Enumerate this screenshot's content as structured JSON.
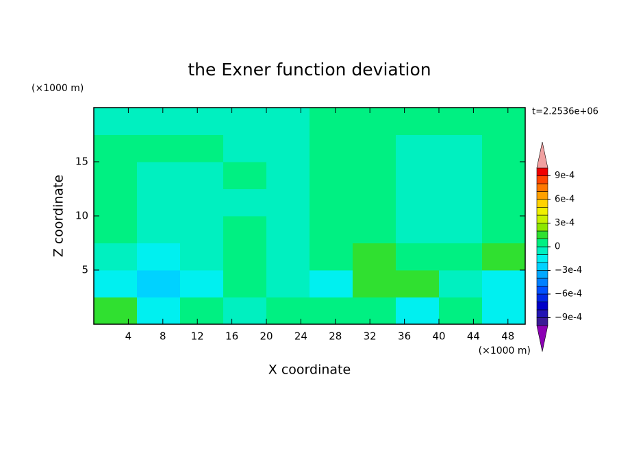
{
  "chart_data": {
    "type": "contour",
    "title": "the Exner function deviation",
    "xlabel": "X coordinate",
    "ylabel": "Z coordinate",
    "xunit": "(×1000 m)",
    "yunit": "(×1000 m)",
    "time_label": "t=2.2536e+06",
    "xlim": [
      0,
      50
    ],
    "ylim": [
      0,
      20
    ],
    "xticks": [
      4,
      8,
      12,
      16,
      20,
      24,
      28,
      32,
      36,
      40,
      44,
      48
    ],
    "yticks": [
      5,
      10,
      15
    ],
    "x_edges": [
      0,
      5,
      10,
      15,
      20,
      25,
      30,
      35,
      40,
      45,
      50
    ],
    "z_edges": [
      0,
      2.5,
      5,
      7.5,
      10,
      12.5,
      15,
      17.5,
      20
    ],
    "values": [
      [
        0.00015,
        -0.00015,
        5e-05,
        -5e-05,
        5e-05,
        5e-05,
        5e-05,
        -0.00015,
        5e-05,
        -0.00015
      ],
      [
        -0.00015,
        -0.00025,
        -0.00015,
        5e-05,
        -5e-05,
        -0.00015,
        0.00015,
        0.00015,
        -5e-05,
        -0.00015
      ],
      [
        -5e-05,
        -0.00015,
        -5e-05,
        5e-05,
        -5e-05,
        5e-05,
        0.00015,
        5e-05,
        5e-05,
        0.00015
      ],
      [
        5e-05,
        -5e-05,
        -5e-05,
        5e-05,
        -5e-05,
        5e-05,
        5e-05,
        -5e-05,
        -5e-05,
        5e-05
      ],
      [
        5e-05,
        -5e-05,
        -5e-05,
        -5e-05,
        -5e-05,
        5e-05,
        5e-05,
        -5e-05,
        -5e-05,
        5e-05
      ],
      [
        5e-05,
        -5e-05,
        -5e-05,
        5e-05,
        -5e-05,
        5e-05,
        5e-05,
        -5e-05,
        -5e-05,
        5e-05
      ],
      [
        5e-05,
        5e-05,
        5e-05,
        -5e-05,
        -5e-05,
        5e-05,
        5e-05,
        -5e-05,
        -5e-05,
        5e-05
      ],
      [
        -5e-05,
        -5e-05,
        -5e-05,
        -5e-05,
        -5e-05,
        5e-05,
        5e-05,
        5e-05,
        5e-05,
        5e-05
      ]
    ],
    "levels": [
      -0.001,
      -0.0009,
      -0.0008,
      -0.0007,
      -0.0006,
      -0.0005,
      -0.0004,
      -0.0003,
      -0.0002,
      -0.0001,
      0,
      0.0001,
      0.0002,
      0.0003,
      0.0004,
      0.0005,
      0.0006,
      0.0007,
      0.0008,
      0.0009,
      0.001
    ],
    "colors": [
      "#3a1a96",
      "#2314b4",
      "#0000c8",
      "#0028e6",
      "#0050ff",
      "#0080ff",
      "#00a8ff",
      "#00d2ff",
      "#00f0f0",
      "#00f0c0",
      "#00f082",
      "#30e030",
      "#8ce600",
      "#c8f000",
      "#f0f000",
      "#ffd200",
      "#ffa000",
      "#ff7800",
      "#ff4600",
      "#f00000"
    ],
    "under_color": "#8c00b4",
    "over_color": "#f0a0a0",
    "cbticks": [
      {
        "value": -0.0009,
        "label": "−9e-4"
      },
      {
        "value": -0.0006,
        "label": "−6e-4"
      },
      {
        "value": -0.0003,
        "label": "−3e-4"
      },
      0,
      {
        "value": 0.0003,
        "label": "3e-4"
      },
      {
        "value": 0.0006,
        "label": "6e-4"
      },
      {
        "value": 0.0009,
        "label": "9e-4"
      }
    ]
  }
}
